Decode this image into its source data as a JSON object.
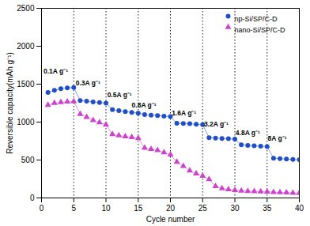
{
  "chart_data": {
    "type": "line",
    "xlabel": "Cycle number",
    "ylabel": "Reversible capacity(mAh g⁻¹)",
    "x": [
      1,
      2,
      3,
      4,
      5,
      6,
      7,
      8,
      9,
      10,
      11,
      12,
      13,
      14,
      15,
      16,
      17,
      18,
      19,
      20,
      21,
      22,
      23,
      24,
      25,
      26,
      27,
      28,
      29,
      30,
      31,
      32,
      33,
      34,
      35,
      36,
      37,
      38,
      39,
      40
    ],
    "series": [
      {
        "name": "np-Si/SP/C-D",
        "color": "#1f4fc8",
        "marker": "o",
        "values": [
          1390,
          1420,
          1440,
          1450,
          1455,
          1285,
          1275,
          1265,
          1258,
          1250,
          1165,
          1150,
          1138,
          1128,
          1118,
          1100,
          1092,
          1085,
          1078,
          1072,
          985,
          982,
          978,
          972,
          965,
          795,
          790,
          785,
          780,
          775,
          700,
          693,
          687,
          682,
          677,
          523,
          518,
          513,
          508,
          502
        ]
      },
      {
        "name": "nano-Si/SP/C-D",
        "color": "#cc44cc",
        "marker": "^",
        "values": [
          1225,
          1250,
          1260,
          1268,
          1272,
          1105,
          1065,
          1025,
          995,
          965,
          840,
          823,
          812,
          800,
          788,
          660,
          643,
          628,
          600,
          570,
          475,
          420,
          360,
          320,
          290,
          245,
          155,
          125,
          112,
          103,
          95,
          90,
          87,
          84,
          82,
          77,
          73,
          70,
          67,
          64
        ]
      }
    ],
    "vlines": [
      5,
      10,
      15,
      20,
      25,
      30,
      35
    ],
    "annotations": [
      {
        "x": 0.3,
        "y": 1700,
        "text": "0.1A g⁻¹"
      },
      {
        "x": 5.3,
        "y": 1545,
        "text": "0.3A g⁻¹"
      },
      {
        "x": 10.2,
        "y": 1390,
        "text": "0.5A g⁻¹"
      },
      {
        "x": 14.0,
        "y": 1255,
        "text": "0.8A g⁻¹"
      },
      {
        "x": 20.2,
        "y": 1155,
        "text": "1.6A g⁻¹"
      },
      {
        "x": 25.2,
        "y": 1010,
        "text": "3.2A g⁻¹"
      },
      {
        "x": 30.1,
        "y": 895,
        "text": "4.8A g⁻¹"
      },
      {
        "x": 35.1,
        "y": 815,
        "text": "8A g⁻¹"
      }
    ],
    "xlim": [
      0,
      40
    ],
    "ylim": [
      0,
      2500
    ],
    "xticks": [
      0,
      5,
      10,
      15,
      20,
      25,
      30,
      35,
      40
    ],
    "yticks": [
      0,
      500,
      1000,
      1500,
      2000,
      2500
    ],
    "grid": false,
    "legend": "upper right"
  }
}
